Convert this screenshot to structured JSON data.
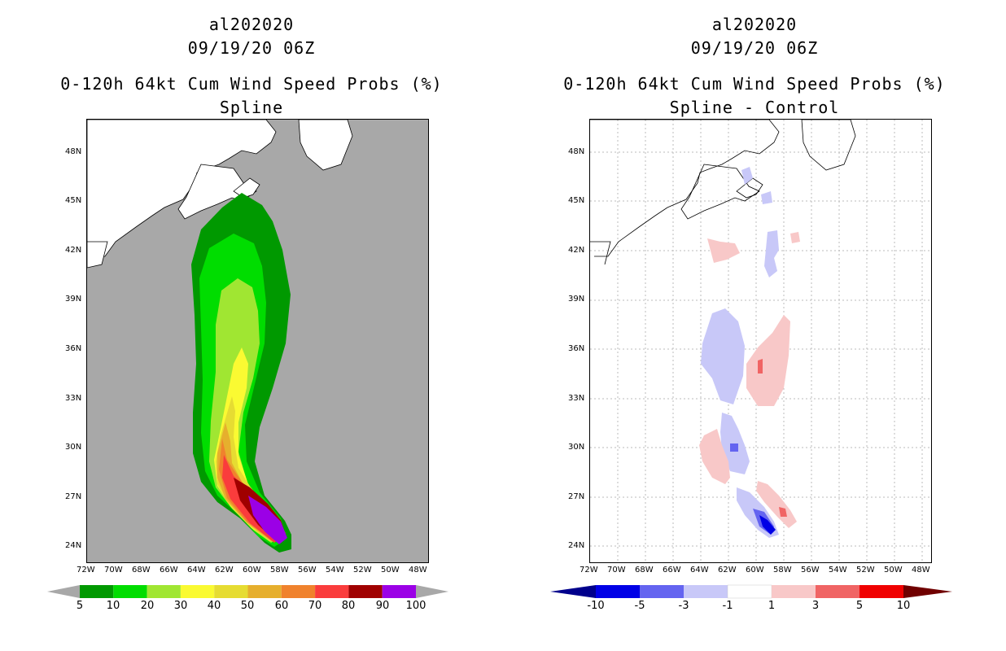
{
  "left": {
    "title1": "al202020",
    "title2": "09/19/20 06Z",
    "title3": "0-120h 64kt Cum Wind Speed Probs (%)",
    "title4": "Spline",
    "colorbar": {
      "colors": [
        "#009900",
        "#00dd00",
        "#a0e632",
        "#fafa32",
        "#e6dc32",
        "#e6af2d",
        "#f0822d",
        "#fa3c3c",
        "#a00000",
        "#9b00e6"
      ],
      "labels": [
        "5",
        "10",
        "20",
        "30",
        "40",
        "50",
        "60",
        "70",
        "80",
        "90",
        "100"
      ]
    }
  },
  "right": {
    "title1": "al202020",
    "title2": "09/19/20 06Z",
    "title3": "0-120h 64kt Cum Wind Speed Probs (%)",
    "title4": "Spline - Control",
    "colorbar": {
      "colors": [
        "#0000e6",
        "#6464f0",
        "#c8c8f8",
        "#ffffff",
        "#f8c8c8",
        "#f06464",
        "#f00000"
      ],
      "labels": [
        "-10",
        "-5",
        "-3",
        "-1",
        "1",
        "3",
        "5",
        "10"
      ]
    }
  },
  "axes": {
    "lat_labels": [
      "48N",
      "45N",
      "42N",
      "39N",
      "36N",
      "33N",
      "30N",
      "27N",
      "24N"
    ],
    "lon_labels": [
      "72W",
      "70W",
      "68W",
      "66W",
      "64W",
      "62W",
      "60W",
      "58W",
      "56W",
      "54W",
      "52W",
      "50W",
      "48W"
    ]
  },
  "colors": {
    "ocean_gray": "#a8a8a8",
    "land": "#ffffff",
    "arrow_left": "#a8a8a8",
    "arrow_low": "#00008c",
    "arrow_high": "#700000"
  }
}
